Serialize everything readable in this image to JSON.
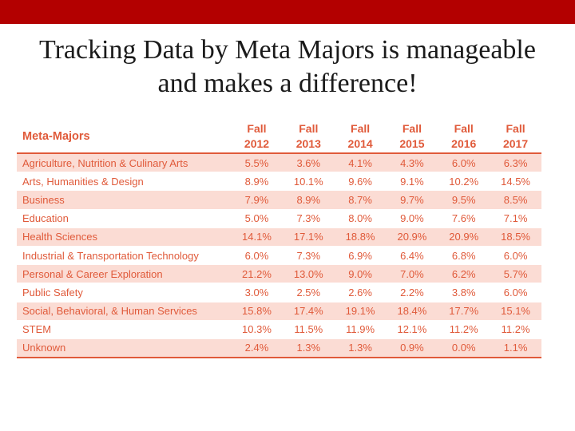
{
  "slide": {
    "title_line1": "Tracking Data by Meta Majors is manageable",
    "title_line2": "and makes a difference!",
    "accent_color": "#b30000",
    "table_color": "#e05a3a"
  },
  "table": {
    "header_label": "Meta-Majors",
    "years": [
      {
        "term": "Fall",
        "year": "2012"
      },
      {
        "term": "Fall",
        "year": "2013"
      },
      {
        "term": "Fall",
        "year": "2014"
      },
      {
        "term": "Fall",
        "year": "2015"
      },
      {
        "term": "Fall",
        "year": "2016"
      },
      {
        "term": "Fall",
        "year": "2017"
      }
    ],
    "rows": [
      {
        "name": "Agriculture, Nutrition & Culinary Arts",
        "values": [
          "5.5%",
          "3.6%",
          "4.1%",
          "4.3%",
          "6.0%",
          "6.3%"
        ]
      },
      {
        "name": "Arts, Humanities & Design",
        "values": [
          "8.9%",
          "10.1%",
          "9.6%",
          "9.1%",
          "10.2%",
          "14.5%"
        ]
      },
      {
        "name": "Business",
        "values": [
          "7.9%",
          "8.9%",
          "8.7%",
          "9.7%",
          "9.5%",
          "8.5%"
        ]
      },
      {
        "name": "Education",
        "values": [
          "5.0%",
          "7.3%",
          "8.0%",
          "9.0%",
          "7.6%",
          "7.1%"
        ]
      },
      {
        "name": "Health Sciences",
        "values": [
          "14.1%",
          "17.1%",
          "18.8%",
          "20.9%",
          "20.9%",
          "18.5%"
        ]
      },
      {
        "name": "Industrial & Transportation Technology",
        "values": [
          "6.0%",
          "7.3%",
          "6.9%",
          "6.4%",
          "6.8%",
          "6.0%"
        ]
      },
      {
        "name": "Personal & Career Exploration",
        "values": [
          "21.2%",
          "13.0%",
          "9.0%",
          "7.0%",
          "6.2%",
          "5.7%"
        ]
      },
      {
        "name": "Public Safety",
        "values": [
          "3.0%",
          "2.5%",
          "2.6%",
          "2.2%",
          "3.8%",
          "6.0%"
        ]
      },
      {
        "name": "Social, Behavioral, & Human Services",
        "values": [
          "15.8%",
          "17.4%",
          "19.1%",
          "18.4%",
          "17.7%",
          "15.1%"
        ]
      },
      {
        "name": "STEM",
        "values": [
          "10.3%",
          "11.5%",
          "11.9%",
          "12.1%",
          "11.2%",
          "11.2%"
        ]
      },
      {
        "name": "Unknown",
        "values": [
          "2.4%",
          "1.3%",
          "1.3%",
          "0.9%",
          "0.0%",
          "1.1%"
        ]
      }
    ]
  }
}
